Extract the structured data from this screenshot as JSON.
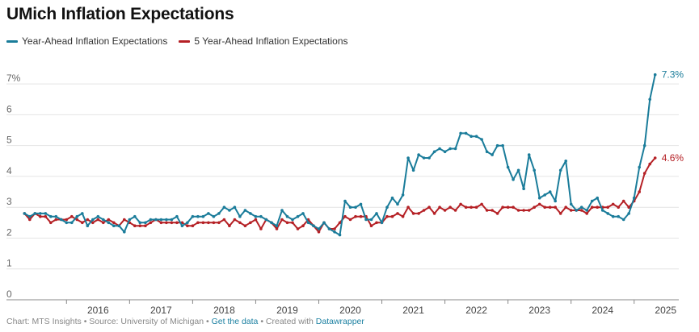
{
  "colors": {
    "year_ahead": "#1a7c9a",
    "five_year": "#b52025",
    "grid": "#e4e4e4",
    "axis": "#888888"
  },
  "chart_data": {
    "type": "line",
    "title": "UMich Inflation Expectations",
    "xlabel": "",
    "ylabel": "",
    "ylim": [
      0,
      7.5
    ],
    "xlim": [
      2015.33,
      2025.58
    ],
    "y_ticks": [
      0,
      1,
      2,
      3,
      4,
      5,
      6,
      7
    ],
    "y_tick_labels": [
      "0",
      "1",
      "2",
      "3",
      "4",
      "5",
      "6",
      "7%"
    ],
    "x_ticks": [
      2016,
      2017,
      2018,
      2019,
      2020,
      2021,
      2022,
      2023,
      2024,
      2025
    ],
    "x_tick_labels": [
      "2016",
      "2017",
      "2018",
      "2019",
      "2020",
      "2021",
      "2022",
      "2023",
      "2024",
      "2025"
    ],
    "start": [
      2015,
      5
    ],
    "series": [
      {
        "name": "Year-Ahead Inflation Expectations",
        "end_label": "7.3%",
        "values": [
          2.8,
          2.7,
          2.8,
          2.8,
          2.8,
          2.7,
          2.7,
          2.6,
          2.5,
          2.5,
          2.7,
          2.8,
          2.4,
          2.6,
          2.7,
          2.6,
          2.5,
          2.4,
          2.4,
          2.2,
          2.6,
          2.7,
          2.5,
          2.5,
          2.6,
          2.6,
          2.6,
          2.6,
          2.6,
          2.7,
          2.4,
          2.5,
          2.7,
          2.7,
          2.7,
          2.8,
          2.7,
          2.8,
          3.0,
          2.9,
          3.0,
          2.7,
          2.9,
          2.8,
          2.7,
          2.7,
          2.6,
          2.5,
          2.4,
          2.9,
          2.7,
          2.6,
          2.7,
          2.8,
          2.5,
          2.4,
          2.3,
          2.5,
          2.3,
          2.2,
          2.1,
          3.2,
          3.0,
          3.0,
          3.1,
          2.6,
          2.6,
          2.8,
          2.5,
          3.0,
          3.3,
          3.1,
          3.4,
          4.6,
          4.2,
          4.7,
          4.6,
          4.6,
          4.8,
          4.9,
          4.8,
          4.9,
          4.9,
          5.4,
          5.4,
          5.3,
          5.3,
          5.2,
          4.8,
          4.7,
          5.0,
          5.0,
          4.3,
          3.9,
          4.2,
          3.6,
          4.7,
          4.2,
          3.3,
          3.4,
          3.5,
          3.2,
          4.2,
          4.5,
          3.1,
          2.9,
          3.0,
          2.9,
          3.2,
          3.3,
          2.9,
          2.8,
          2.7,
          2.7,
          2.6,
          2.8,
          3.3,
          4.3,
          5.0,
          6.5,
          7.3
        ]
      },
      {
        "name": "5 Year-Ahead Inflation Expectations",
        "end_label": "4.6%",
        "values": [
          2.8,
          2.6,
          2.8,
          2.7,
          2.7,
          2.5,
          2.6,
          2.6,
          2.6,
          2.7,
          2.6,
          2.5,
          2.6,
          2.5,
          2.6,
          2.5,
          2.6,
          2.5,
          2.4,
          2.6,
          2.5,
          2.4,
          2.4,
          2.4,
          2.5,
          2.6,
          2.5,
          2.5,
          2.5,
          2.5,
          2.5,
          2.4,
          2.4,
          2.5,
          2.5,
          2.5,
          2.5,
          2.5,
          2.6,
          2.4,
          2.6,
          2.5,
          2.4,
          2.5,
          2.6,
          2.3,
          2.6,
          2.5,
          2.3,
          2.6,
          2.5,
          2.5,
          2.3,
          2.4,
          2.6,
          2.4,
          2.2,
          2.5,
          2.3,
          2.3,
          2.5,
          2.7,
          2.6,
          2.7,
          2.7,
          2.7,
          2.4,
          2.5,
          2.5,
          2.7,
          2.7,
          2.8,
          2.7,
          3.0,
          2.8,
          2.8,
          2.9,
          3.0,
          2.8,
          3.0,
          2.9,
          3.0,
          2.9,
          3.1,
          3.0,
          3.0,
          3.0,
          3.1,
          2.9,
          2.9,
          2.8,
          3.0,
          3.0,
          3.0,
          2.9,
          2.9,
          2.9,
          3.0,
          3.1,
          3.0,
          3.0,
          3.0,
          2.8,
          3.0,
          2.9,
          2.9,
          2.9,
          2.8,
          3.0,
          3.0,
          3.0,
          3.0,
          3.1,
          3.0,
          3.2,
          3.0,
          3.2,
          3.5,
          4.1,
          4.4,
          4.6
        ]
      }
    ]
  },
  "footer": {
    "prefix": "Chart: MTS Insights • Source: University of Michigan • ",
    "get_data": "Get the data",
    "middle": " • Created with ",
    "datawrapper": "Datawrapper"
  }
}
